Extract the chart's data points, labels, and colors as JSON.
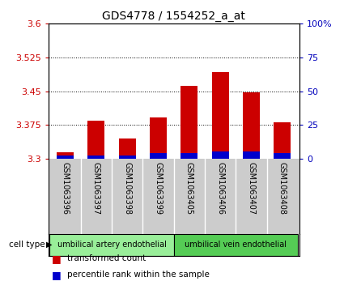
{
  "title": "GDS4778 / 1554252_a_at",
  "samples": [
    "GSM1063396",
    "GSM1063397",
    "GSM1063398",
    "GSM1063399",
    "GSM1063405",
    "GSM1063406",
    "GSM1063407",
    "GSM1063408"
  ],
  "red_values": [
    3.315,
    3.385,
    3.345,
    3.392,
    3.462,
    3.492,
    3.448,
    3.38
  ],
  "blue_values": [
    3.308,
    3.308,
    3.308,
    3.312,
    3.312,
    3.316,
    3.316,
    3.312
  ],
  "y_min": 3.3,
  "y_max": 3.6,
  "y_ticks": [
    3.3,
    3.375,
    3.45,
    3.525,
    3.6
  ],
  "y2_ticks": [
    0,
    25,
    50,
    75,
    100
  ],
  "cell_types": [
    {
      "label": "umbilical artery endothelial",
      "start": 0,
      "end": 4,
      "color": "#99ee99"
    },
    {
      "label": "umbilical vein endothelial",
      "start": 4,
      "end": 8,
      "color": "#55cc55"
    }
  ],
  "bar_color_red": "#cc0000",
  "bar_color_blue": "#0000cc",
  "bar_width": 0.55,
  "plot_bg": "#ffffff",
  "sample_area_bg": "#cccccc",
  "left_label_color": "#cc0000",
  "right_label_color": "#0000bb",
  "legend_items": [
    {
      "color": "#cc0000",
      "label": "transformed count"
    },
    {
      "color": "#0000cc",
      "label": "percentile rank within the sample"
    }
  ]
}
